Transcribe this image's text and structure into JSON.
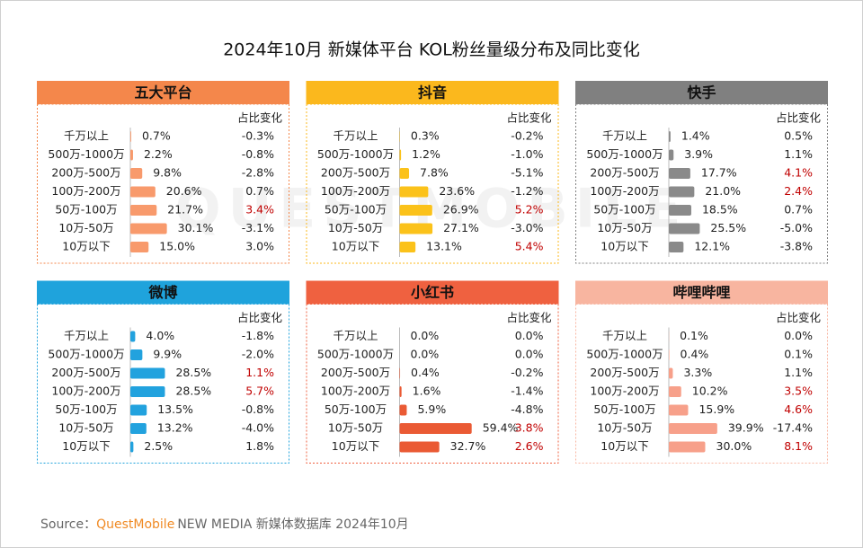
{
  "chart_data": [
    {
      "type": "bar",
      "title": "五大平台",
      "color": "#f4874b",
      "bar_color": "#f89a6c",
      "change_header": "占比变化",
      "categories": [
        "千万以上",
        "500万-1000万",
        "200万-500万",
        "100万-200万",
        "50万-100万",
        "10万-50万",
        "10万以下"
      ],
      "values": [
        0.7,
        2.2,
        9.8,
        20.6,
        21.7,
        30.1,
        15.0
      ],
      "value_labels": [
        "0.7%",
        "2.2%",
        "9.8%",
        "20.6%",
        "21.7%",
        "30.1%",
        "15.0%"
      ],
      "changes": [
        -0.3,
        -0.8,
        -2.8,
        0.7,
        3.4,
        -3.1,
        3.0
      ],
      "change_labels": [
        "-0.3%",
        "-0.8%",
        "-2.8%",
        "0.7%",
        "3.4%",
        "-3.1%",
        "3.0%"
      ],
      "change_colors": [
        "#222222",
        "#222222",
        "#222222",
        "#222222",
        "#c00000",
        "#222222",
        "#222222"
      ]
    },
    {
      "type": "bar",
      "title": "抖音",
      "color": "#fbb81d",
      "bar_color": "#fbc21a",
      "change_header": "占比变化",
      "categories": [
        "千万以上",
        "500万-1000万",
        "200万-500万",
        "100万-200万",
        "50万-100万",
        "10万-50万",
        "10万以下"
      ],
      "values": [
        0.3,
        1.2,
        7.8,
        23.6,
        26.9,
        27.1,
        13.1
      ],
      "value_labels": [
        "0.3%",
        "1.2%",
        "7.8%",
        "23.6%",
        "26.9%",
        "27.1%",
        "13.1%"
      ],
      "changes": [
        -0.2,
        -1.0,
        -5.1,
        -1.2,
        5.2,
        -3.0,
        5.4
      ],
      "change_labels": [
        "-0.2%",
        "-1.0%",
        "-5.1%",
        "-1.2%",
        "5.2%",
        "-3.0%",
        "5.4%"
      ],
      "change_colors": [
        "#222222",
        "#222222",
        "#222222",
        "#222222",
        "#c00000",
        "#222222",
        "#c00000"
      ]
    },
    {
      "type": "bar",
      "title": "快手",
      "color": "#808080",
      "bar_color": "#8a8a8a",
      "change_header": "占比变化",
      "categories": [
        "千万以上",
        "500万-1000万",
        "200万-500万",
        "100万-200万",
        "50万-100万",
        "10万-50万",
        "10万以下"
      ],
      "values": [
        1.4,
        3.9,
        17.7,
        21.0,
        18.5,
        25.5,
        12.1
      ],
      "value_labels": [
        "1.4%",
        "3.9%",
        "17.7%",
        "21.0%",
        "18.5%",
        "25.5%",
        "12.1%"
      ],
      "changes": [
        0.5,
        1.1,
        4.1,
        2.4,
        0.7,
        -5.0,
        -3.8
      ],
      "change_labels": [
        "0.5%",
        "1.1%",
        "4.1%",
        "2.4%",
        "0.7%",
        "-5.0%",
        "-3.8%"
      ],
      "change_colors": [
        "#222222",
        "#222222",
        "#c00000",
        "#c00000",
        "#222222",
        "#222222",
        "#222222"
      ]
    },
    {
      "type": "bar",
      "title": "微博",
      "color": "#1fa3dc",
      "bar_color": "#22a2de",
      "change_header": "占比变化",
      "categories": [
        "千万以上",
        "500万-1000万",
        "200万-500万",
        "100万-200万",
        "50万-100万",
        "10万-50万",
        "10万以下"
      ],
      "values": [
        4.0,
        9.9,
        28.5,
        28.5,
        13.5,
        13.2,
        2.5
      ],
      "value_labels": [
        "4.0%",
        "9.9%",
        "28.5%",
        "28.5%",
        "13.5%",
        "13.2%",
        "2.5%"
      ],
      "changes": [
        -1.8,
        -2.0,
        1.1,
        5.7,
        -0.8,
        -4.0,
        1.8
      ],
      "change_labels": [
        "-1.8%",
        "-2.0%",
        "1.1%",
        "5.7%",
        "-0.8%",
        "-4.0%",
        "1.8%"
      ],
      "change_colors": [
        "#222222",
        "#222222",
        "#c00000",
        "#c00000",
        "#222222",
        "#222222",
        "#222222"
      ]
    },
    {
      "type": "bar",
      "title": "小红书",
      "color": "#ef6140",
      "bar_color": "#ea5a34",
      "change_header": "占比变化",
      "categories": [
        "千万以上",
        "500万-1000万",
        "200万-500万",
        "100万-200万",
        "50万-100万",
        "10万-50万",
        "10万以下"
      ],
      "values": [
        0.0,
        0.0,
        0.4,
        1.6,
        5.9,
        59.4,
        32.7
      ],
      "value_labels": [
        "0.0%",
        "0.0%",
        "0.4%",
        "1.6%",
        "5.9%",
        "59.4%",
        "32.7%"
      ],
      "changes": [
        0.0,
        0.0,
        -0.2,
        -1.4,
        -4.8,
        3.8,
        2.6
      ],
      "change_labels": [
        "0.0%",
        "0.0%",
        "-0.2%",
        "-1.4%",
        "-4.8%",
        "3.8%",
        "2.6%"
      ],
      "change_colors": [
        "#222222",
        "#222222",
        "#222222",
        "#222222",
        "#222222",
        "#c00000",
        "#c00000"
      ]
    },
    {
      "type": "bar",
      "title": "哔哩哔哩",
      "color": "#f8b5a0",
      "bar_color": "#f7a08a",
      "change_header": "占比变化",
      "categories": [
        "千万以上",
        "500万-1000万",
        "200万-500万",
        "100万-200万",
        "50万-100万",
        "10万-50万",
        "10万以下"
      ],
      "values": [
        0.1,
        0.4,
        3.3,
        10.2,
        15.9,
        39.9,
        30.0
      ],
      "value_labels": [
        "0.1%",
        "0.4%",
        "3.3%",
        "10.2%",
        "15.9%",
        "39.9%",
        "30.0%"
      ],
      "changes": [
        0.0,
        0.1,
        1.1,
        3.5,
        4.6,
        -17.4,
        8.1
      ],
      "change_labels": [
        "0.0%",
        "0.1%",
        "1.1%",
        "3.5%",
        "4.6%",
        "-17.4%",
        "8.1%"
      ],
      "change_colors": [
        "#222222",
        "#222222",
        "#222222",
        "#c00000",
        "#c00000",
        "#222222",
        "#c00000"
      ]
    }
  ],
  "title": "2024年10月 新媒体平台 KOL粉丝量级分布及同比变化",
  "watermark": "QUESTMOBILE",
  "source": {
    "label": "Source：",
    "brand": "QuestMobile",
    "text": "NEW MEDIA 新媒体数据库 2024年10月"
  }
}
